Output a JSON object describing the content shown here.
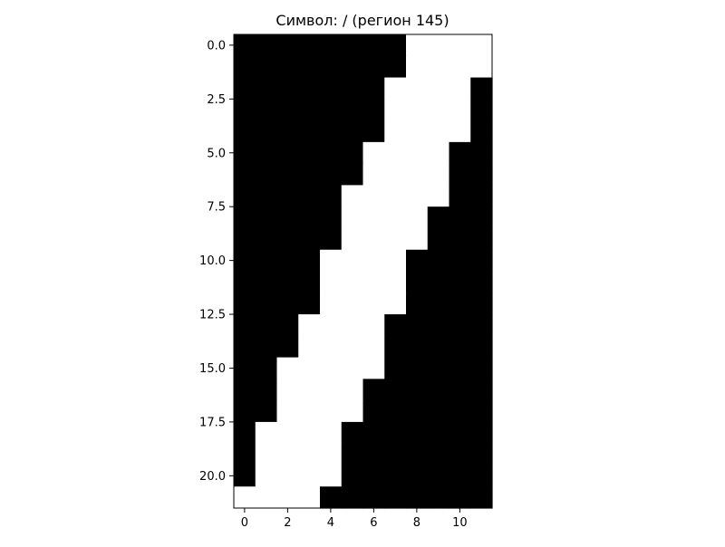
{
  "chart_data": {
    "type": "heatmap",
    "title": "Символ: / (регион 145)",
    "xlabel": "",
    "ylabel": "",
    "colormap": "gray",
    "colors": {
      "on": "#ffffff",
      "off": "#000000",
      "axis": "#000000"
    },
    "rows": 22,
    "cols": 12,
    "xlim": [
      -0.5,
      11.5
    ],
    "ylim": [
      21.5,
      -0.5
    ],
    "x_ticks": [
      0,
      2,
      4,
      6,
      8,
      10
    ],
    "x_tick_labels": [
      "0",
      "2",
      "4",
      "6",
      "8",
      "10"
    ],
    "y_ticks": [
      0,
      2.5,
      5,
      7.5,
      10,
      12.5,
      15,
      17.5,
      20
    ],
    "y_tick_labels": [
      "0.0",
      "2.5",
      "5.0",
      "7.5",
      "10.0",
      "12.5",
      "15.0",
      "17.5",
      "20.0"
    ],
    "grid": false,
    "white_spans": [
      [
        8,
        11
      ],
      [
        8,
        11
      ],
      [
        7,
        10
      ],
      [
        7,
        10
      ],
      [
        7,
        10
      ],
      [
        6,
        9
      ],
      [
        6,
        9
      ],
      [
        5,
        9
      ],
      [
        5,
        8
      ],
      [
        5,
        8
      ],
      [
        4,
        7
      ],
      [
        4,
        7
      ],
      [
        4,
        7
      ],
      [
        3,
        6
      ],
      [
        3,
        6
      ],
      [
        2,
        6
      ],
      [
        2,
        5
      ],
      [
        2,
        5
      ],
      [
        1,
        4
      ],
      [
        1,
        4
      ],
      [
        1,
        4
      ],
      [
        0,
        3
      ]
    ]
  }
}
